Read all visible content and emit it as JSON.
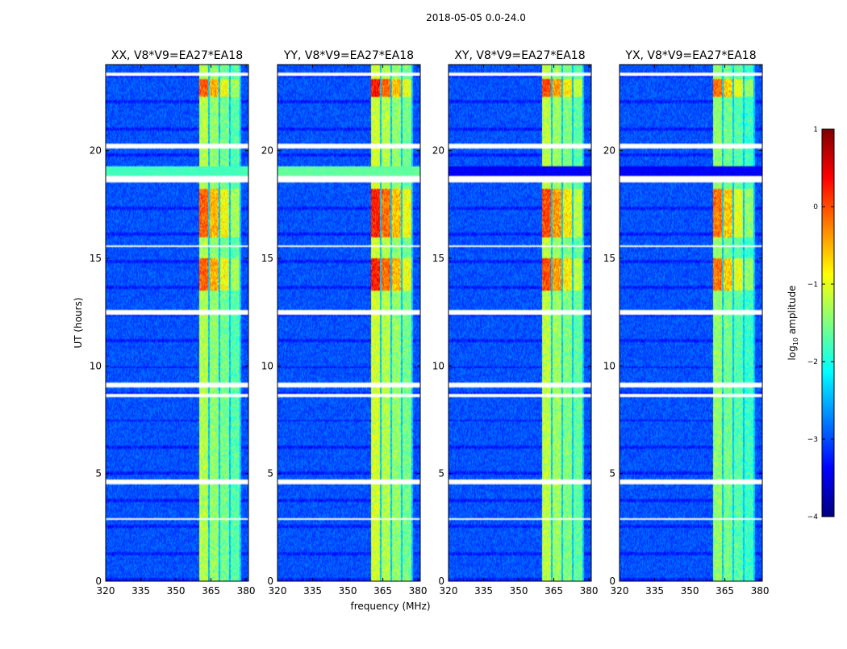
{
  "chart_data": {
    "type": "heatmap",
    "title": "2018-05-05 0.0-24.0",
    "xlabel": "frequency (MHz)",
    "ylabel": "UT (hours)",
    "xlim": [
      320,
      381
    ],
    "ylim": [
      0,
      24
    ],
    "xticks": [
      "320",
      "335",
      "350",
      "365",
      "380"
    ],
    "yticks": [
      "0",
      "5",
      "10",
      "15",
      "20"
    ],
    "colorbar": {
      "label_prefix": "log",
      "label_sub": "10",
      "label_suffix": " amplitude",
      "range": [
        -4,
        1
      ],
      "ticks": [
        "1",
        "0",
        "−1",
        "−2",
        "−3",
        "−4"
      ]
    },
    "panels": [
      {
        "title": "XX, V8*V9=EA27*EA18",
        "band_level": 0.55,
        "bright_level": 0.78,
        "stripe_level": 0.42
      },
      {
        "title": "YY, V8*V9=EA27*EA18",
        "band_level": 0.58,
        "bright_level": 0.85,
        "stripe_level": 0.45
      },
      {
        "title": "XY, V8*V9=EA27*EA18",
        "band_level": 0.56,
        "bright_level": 0.8,
        "stripe_level": 0.1
      },
      {
        "title": "YX, V8*V9=EA27*EA18",
        "band_level": 0.52,
        "bright_level": 0.76,
        "stripe_level": 0.1
      }
    ],
    "band_range_mhz": [
      360,
      378
    ],
    "bright_intervals_ut": [
      [
        13.5,
        15.0
      ],
      [
        16.0,
        18.2
      ],
      [
        22.5,
        23.3
      ]
    ],
    "flagged_intervals_ut": [
      [
        2.85,
        2.95
      ],
      [
        4.5,
        4.7
      ],
      [
        8.55,
        8.7
      ],
      [
        9.0,
        9.2
      ],
      [
        12.4,
        12.6
      ],
      [
        15.5,
        15.6
      ],
      [
        18.5,
        18.8
      ],
      [
        20.1,
        20.3
      ],
      [
        23.5,
        23.6
      ]
    ]
  }
}
